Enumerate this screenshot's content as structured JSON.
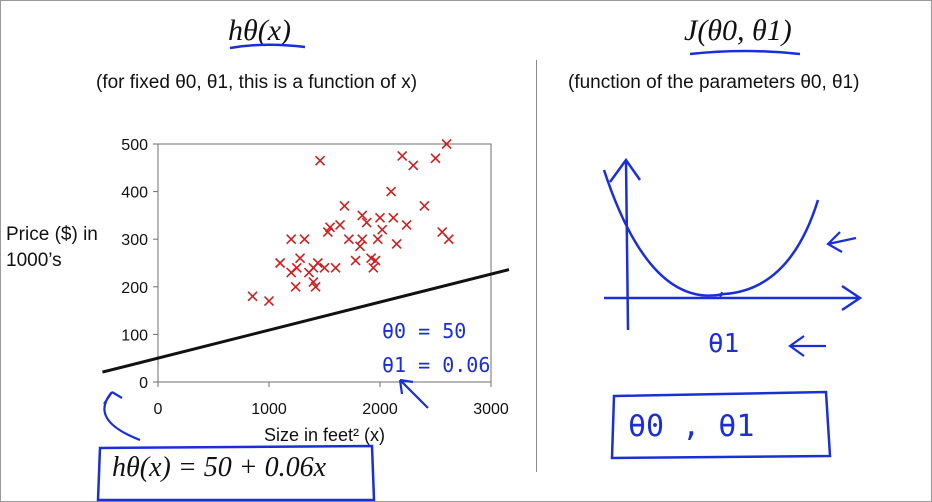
{
  "header": {
    "left_title": "hθ(x)",
    "left_subtitle": "(for fixed θ0, θ1, this is a function of x)",
    "right_title": "J(θ0, θ1)",
    "right_subtitle": "(function of the parameters θ0, θ1)"
  },
  "chart_data": {
    "type": "scatter",
    "title": "",
    "xlabel": "Size in feet² (x)",
    "ylabel": "Price ($) in 1000’s",
    "xlim": [
      0,
      3000
    ],
    "ylim": [
      0,
      500
    ],
    "xticks": [
      0,
      1000,
      2000,
      3000
    ],
    "yticks": [
      0,
      100,
      200,
      300,
      400,
      500
    ],
    "marker_color": "#cc1f1f",
    "line_color": "#111111",
    "points": [
      [
        852,
        180
      ],
      [
        1000,
        170
      ],
      [
        1100,
        250
      ],
      [
        1200,
        300
      ],
      [
        1200,
        230
      ],
      [
        1240,
        200
      ],
      [
        1250,
        240
      ],
      [
        1280,
        260
      ],
      [
        1320,
        300
      ],
      [
        1360,
        230
      ],
      [
        1400,
        210
      ],
      [
        1400,
        240
      ],
      [
        1420,
        200
      ],
      [
        1440,
        250
      ],
      [
        1460,
        465
      ],
      [
        1500,
        240
      ],
      [
        1530,
        315
      ],
      [
        1550,
        325
      ],
      [
        1600,
        240
      ],
      [
        1640,
        330
      ],
      [
        1680,
        370
      ],
      [
        1720,
        300
      ],
      [
        1780,
        255
      ],
      [
        1820,
        285
      ],
      [
        1840,
        300
      ],
      [
        1840,
        350
      ],
      [
        1880,
        335
      ],
      [
        1920,
        260
      ],
      [
        1940,
        240
      ],
      [
        1960,
        255
      ],
      [
        1980,
        300
      ],
      [
        2000,
        345
      ],
      [
        2020,
        320
      ],
      [
        2100,
        400
      ],
      [
        2120,
        345
      ],
      [
        2150,
        290
      ],
      [
        2200,
        475
      ],
      [
        2240,
        330
      ],
      [
        2300,
        455
      ],
      [
        2400,
        370
      ],
      [
        2500,
        470
      ],
      [
        2560,
        315
      ],
      [
        2600,
        500
      ],
      [
        2620,
        300
      ]
    ],
    "hypothesis": {
      "intercept": 50,
      "slope": 0.06,
      "x_range": [
        -500,
        3000
      ]
    },
    "equation": "hθ(x) = 50 + 0.06x"
  },
  "annotations": {
    "theta0_note": "θ0 = 50",
    "theta1_note": "θ1 = 0.06",
    "ink_color": "#1a2fd6"
  },
  "cost_panel": {
    "axis_label": "θ1",
    "box_label": "θ0 , θ1"
  }
}
